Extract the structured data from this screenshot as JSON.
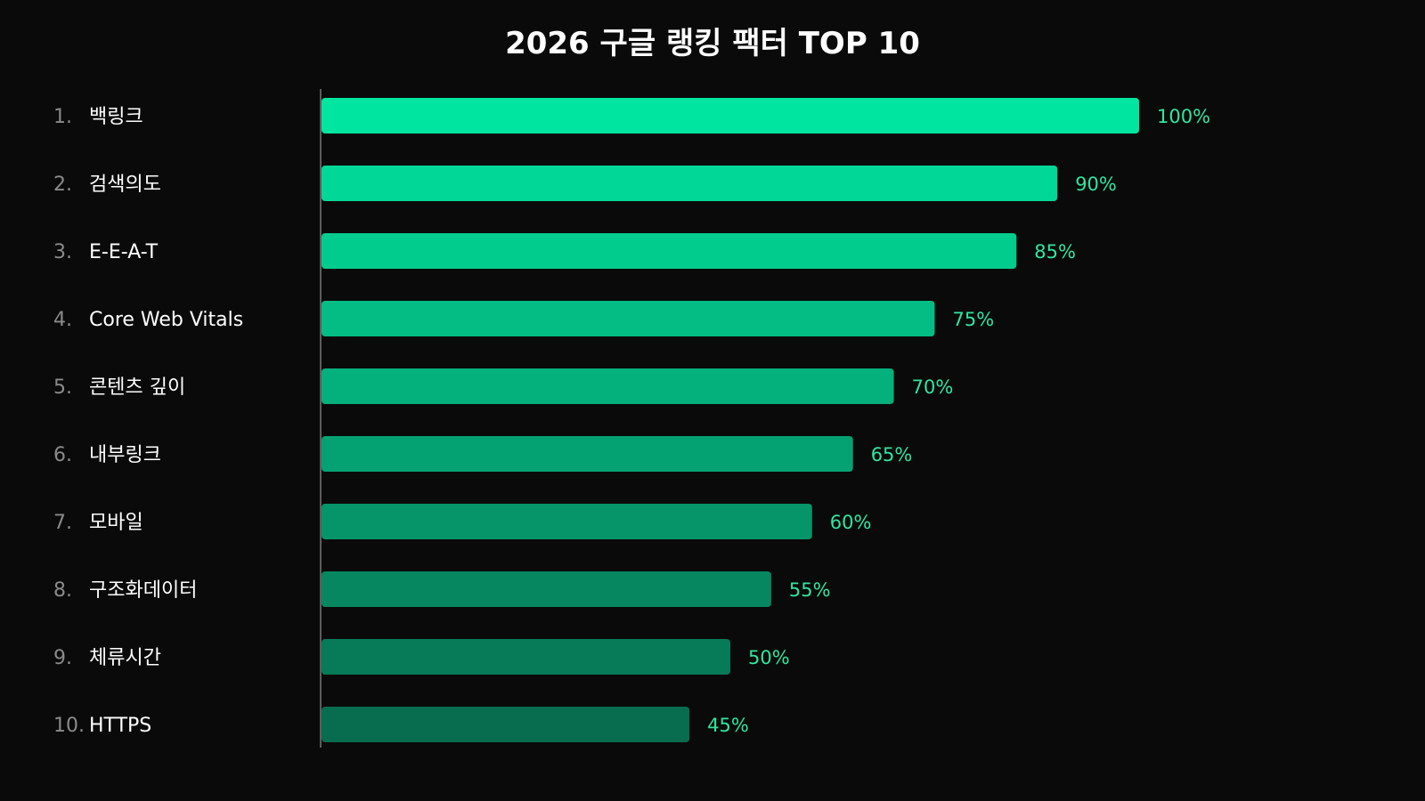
{
  "chart_data": {
    "type": "bar",
    "orientation": "horizontal",
    "title": "2026 구글 랭킹 팩터 TOP 10",
    "xlim": [
      0,
      100
    ],
    "grid": false,
    "legend": "none",
    "categories": [
      "백링크",
      "검색의도",
      "E-E-A-T",
      "Core Web Vitals",
      "콘텐츠 깊이",
      "내부링크",
      "모바일",
      "구조화데이터",
      "체류시간",
      "HTTPS"
    ],
    "ranks": [
      "1.",
      "2.",
      "3.",
      "4.",
      "5.",
      "6.",
      "7.",
      "8.",
      "9.",
      "10."
    ],
    "values": [
      100,
      90,
      85,
      75,
      70,
      65,
      60,
      55,
      50,
      45
    ],
    "value_labels": [
      "100%",
      "90%",
      "85%",
      "75%",
      "70%",
      "65%",
      "60%",
      "55%",
      "50%",
      "45%"
    ],
    "colors": {
      "background": "#0a0a0a",
      "bar_start": "#00e6a0",
      "bar_end": "#086c4e",
      "value_text": "#2ee6a0",
      "axis": "#777777"
    }
  }
}
